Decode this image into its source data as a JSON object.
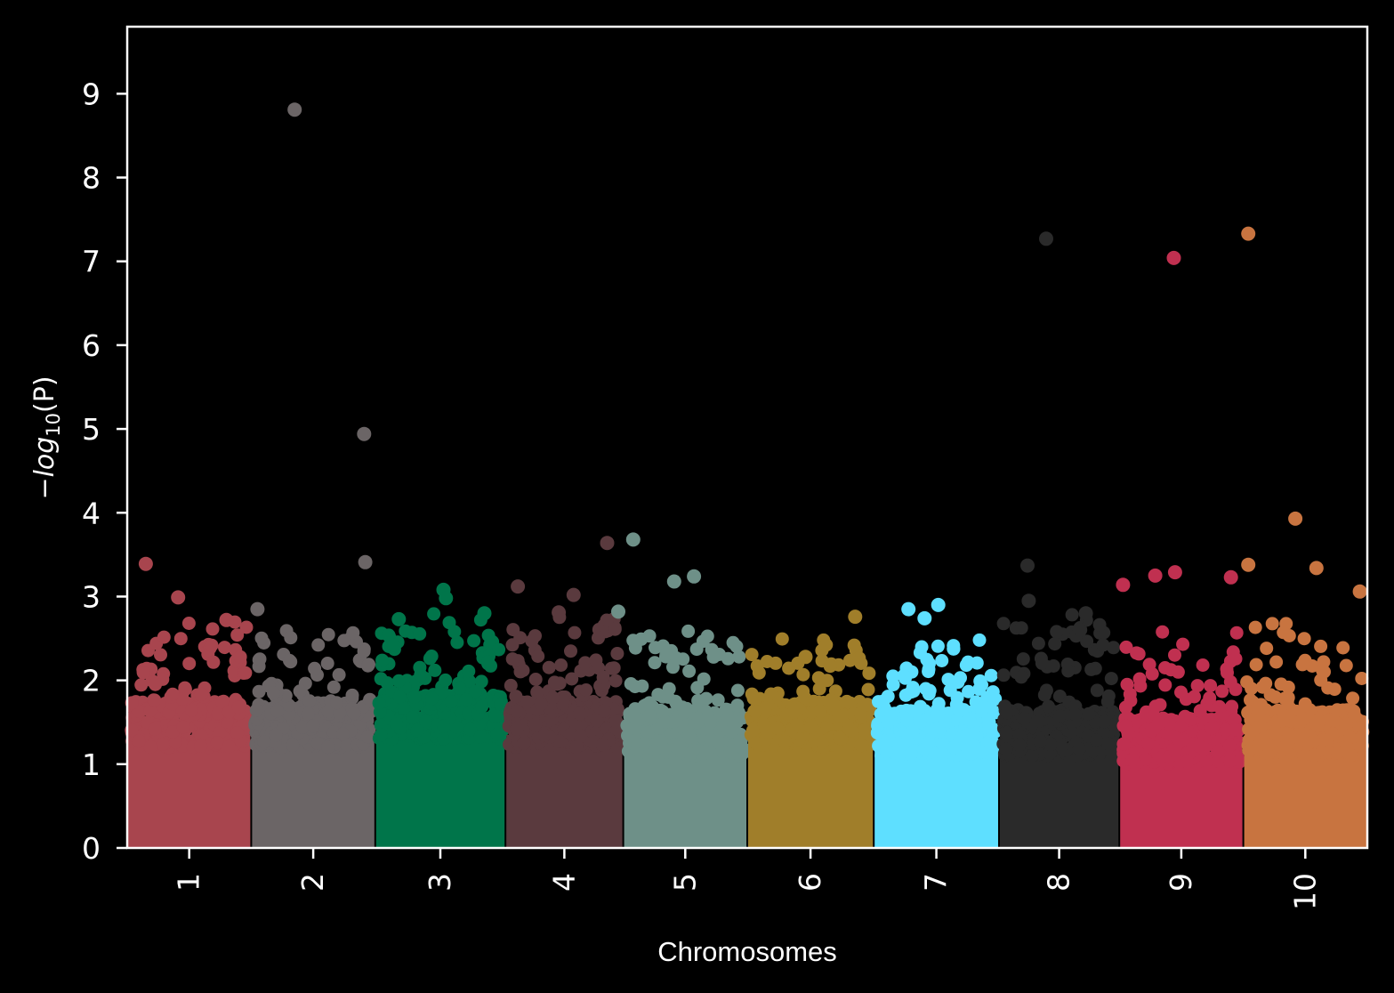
{
  "chart_data": {
    "type": "scatter",
    "subtype": "manhattan",
    "title": "",
    "xlabel": "Chromosomes",
    "ylabel": "-log10(P)",
    "ylim": [
      0,
      9.8
    ],
    "yticks": [
      0,
      1,
      2,
      3,
      4,
      5,
      6,
      7,
      8,
      9
    ],
    "xticks": [
      "1",
      "2",
      "3",
      "4",
      "5",
      "6",
      "7",
      "8",
      "9",
      "10"
    ],
    "xtick_rotation": 90,
    "grid": false,
    "legend": null,
    "background": "#000000",
    "foreground": "#ffffff",
    "chromosomes": [
      {
        "name": "1",
        "color": "#A8454E",
        "x_start": 0.0,
        "x_end": 1.0,
        "dense_top": 1.6,
        "scatter_max": 2.7
      },
      {
        "name": "2",
        "color": "#6B6566",
        "x_start": 1.0,
        "x_end": 2.0,
        "dense_top": 1.6,
        "scatter_max": 2.6
      },
      {
        "name": "3",
        "color": "#00754A",
        "x_start": 2.0,
        "x_end": 3.05,
        "dense_top": 1.7,
        "scatter_max": 2.8
      },
      {
        "name": "4",
        "color": "#5A3A3E",
        "x_start": 3.05,
        "x_end": 4.0,
        "dense_top": 1.6,
        "scatter_max": 2.8
      },
      {
        "name": "5",
        "color": "#6E9088",
        "x_start": 4.0,
        "x_end": 5.0,
        "dense_top": 1.5,
        "scatter_max": 2.6
      },
      {
        "name": "6",
        "color": "#A07E2A",
        "x_start": 5.0,
        "x_end": 6.02,
        "dense_top": 1.6,
        "scatter_max": 2.5
      },
      {
        "name": "7",
        "color": "#5EDFFF",
        "x_start": 6.02,
        "x_end": 7.03,
        "dense_top": 1.5,
        "scatter_max": 2.5
      },
      {
        "name": "8",
        "color": "#2A2A2A",
        "x_start": 7.03,
        "x_end": 8.0,
        "dense_top": 1.5,
        "scatter_max": 2.8
      },
      {
        "name": "9",
        "color": "#C03050",
        "x_start": 8.0,
        "x_end": 9.0,
        "dense_top": 1.4,
        "scatter_max": 2.6
      },
      {
        "name": "10",
        "color": "#C87440",
        "x_start": 9.0,
        "x_end": 10.0,
        "dense_top": 1.5,
        "scatter_max": 2.7
      }
    ],
    "notable_points": [
      {
        "chr": "1",
        "x": 0.15,
        "y": 3.39
      },
      {
        "chr": "1",
        "x": 0.41,
        "y": 2.99
      },
      {
        "chr": "1",
        "x": 0.8,
        "y": 2.72
      },
      {
        "chr": "2",
        "x": 1.35,
        "y": 8.81
      },
      {
        "chr": "2",
        "x": 1.91,
        "y": 4.94
      },
      {
        "chr": "2",
        "x": 1.92,
        "y": 3.41
      },
      {
        "chr": "2",
        "x": 1.05,
        "y": 2.85
      },
      {
        "chr": "3",
        "x": 2.55,
        "y": 3.08
      },
      {
        "chr": "3",
        "x": 2.57,
        "y": 2.98
      },
      {
        "chr": "3",
        "x": 2.88,
        "y": 2.8
      },
      {
        "chr": "3",
        "x": 2.19,
        "y": 2.73
      },
      {
        "chr": "4",
        "x": 3.15,
        "y": 3.12
      },
      {
        "chr": "4",
        "x": 3.87,
        "y": 3.64
      },
      {
        "chr": "4",
        "x": 3.6,
        "y": 3.02
      },
      {
        "chr": "4",
        "x": 3.48,
        "y": 2.81
      },
      {
        "chr": "5",
        "x": 4.08,
        "y": 3.68
      },
      {
        "chr": "5",
        "x": 4.41,
        "y": 3.18
      },
      {
        "chr": "5",
        "x": 4.57,
        "y": 3.24
      },
      {
        "chr": "5",
        "x": 3.96,
        "y": 2.82
      },
      {
        "chr": "6",
        "x": 5.87,
        "y": 2.76
      },
      {
        "chr": "6",
        "x": 5.47,
        "y": 2.28
      },
      {
        "chr": "7",
        "x": 6.3,
        "y": 2.85
      },
      {
        "chr": "7",
        "x": 6.54,
        "y": 2.9
      },
      {
        "chr": "7",
        "x": 6.43,
        "y": 2.74
      },
      {
        "chr": "8",
        "x": 7.41,
        "y": 7.27
      },
      {
        "chr": "8",
        "x": 7.26,
        "y": 3.37
      },
      {
        "chr": "8",
        "x": 7.27,
        "y": 2.95
      },
      {
        "chr": "8",
        "x": 7.73,
        "y": 2.8
      },
      {
        "chr": "9",
        "x": 8.44,
        "y": 7.04
      },
      {
        "chr": "9",
        "x": 8.29,
        "y": 3.25
      },
      {
        "chr": "9",
        "x": 8.45,
        "y": 3.29
      },
      {
        "chr": "9",
        "x": 8.9,
        "y": 3.23
      },
      {
        "chr": "9",
        "x": 8.03,
        "y": 3.14
      },
      {
        "chr": "10",
        "x": 9.04,
        "y": 7.33
      },
      {
        "chr": "10",
        "x": 9.42,
        "y": 3.93
      },
      {
        "chr": "10",
        "x": 9.04,
        "y": 3.38
      },
      {
        "chr": "10",
        "x": 9.59,
        "y": 3.34
      },
      {
        "chr": "10",
        "x": 9.94,
        "y": 3.06
      }
    ]
  },
  "figure": {
    "x_axis_label": "Chromosomes",
    "y_axis_label_prefix": "−log",
    "y_axis_label_sub": "10",
    "y_axis_label_arg": "(P)"
  }
}
